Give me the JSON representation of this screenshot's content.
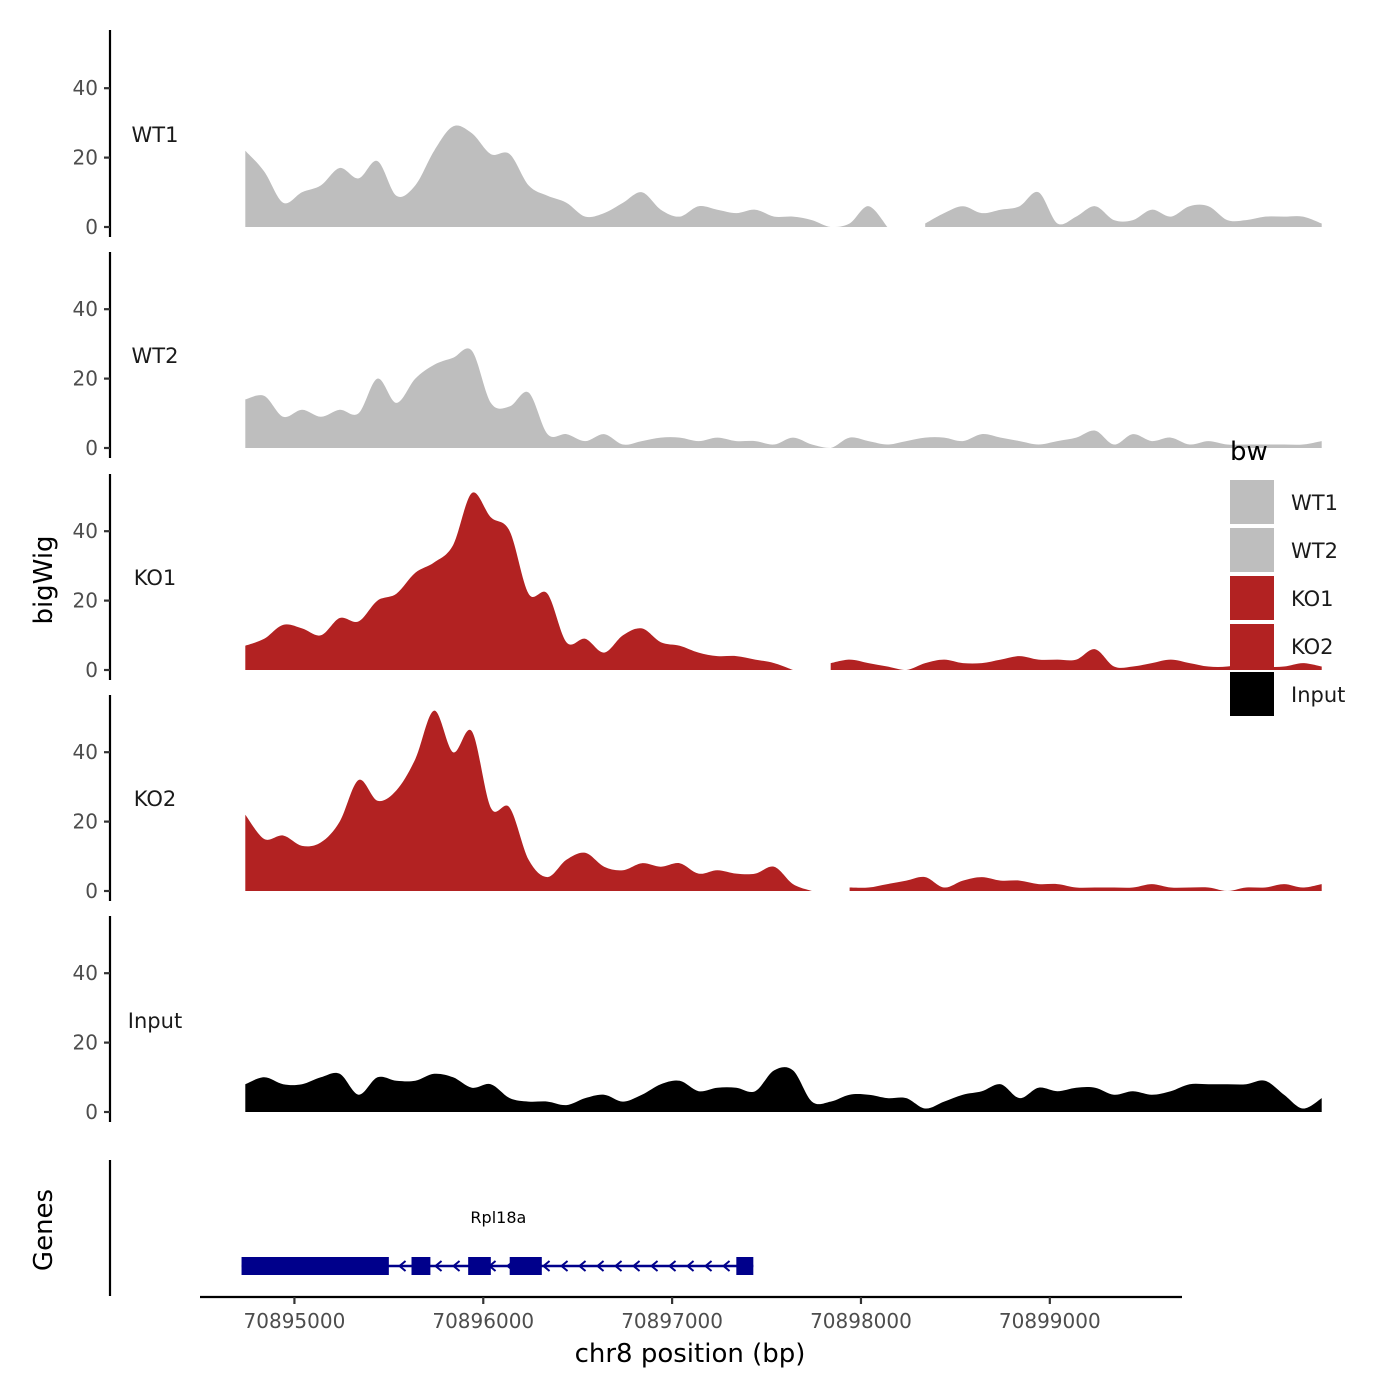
{
  "chart_data": {
    "type": "area",
    "title": "",
    "ylabel": "bigWig",
    "genes_label": "Genes",
    "xlabel": "chr8 position (bp)",
    "xlim": [
      70894500,
      70899700
    ],
    "ylim": [
      0,
      55
    ],
    "yticks": [
      0,
      20,
      40
    ],
    "xticks": [
      70895000,
      70896000,
      70897000,
      70898000,
      70899000
    ],
    "xtick_labels": [
      "70895000",
      "70896000",
      "70897000",
      "70898000",
      "70899000"
    ],
    "legend": {
      "title": "bw",
      "placement": "right",
      "entries": [
        {
          "label": "WT1",
          "color": "#bebebe"
        },
        {
          "label": "WT2",
          "color": "#bebebe"
        },
        {
          "label": "KO1",
          "color": "#b22222"
        },
        {
          "label": "KO2",
          "color": "#b22222"
        },
        {
          "label": "Input",
          "color": "#000000"
        }
      ]
    },
    "x_start": 70894740,
    "step_bp": 100,
    "series": [
      {
        "name": "WT1",
        "color": "#bebebe",
        "values": [
          22,
          16,
          7,
          10,
          12,
          17,
          14,
          19,
          9,
          12,
          22,
          29,
          27,
          21,
          21,
          12,
          9,
          7,
          3,
          4,
          7,
          10,
          5,
          3,
          6,
          5,
          4,
          5,
          3,
          3,
          2,
          0,
          1,
          6,
          0,
          null,
          1,
          4,
          6,
          4,
          5,
          6,
          10,
          1,
          3,
          6,
          2,
          2,
          5,
          3,
          6,
          6,
          2,
          2,
          3,
          3,
          3,
          1
        ]
      },
      {
        "name": "WT2",
        "color": "#bebebe",
        "values": [
          14,
          15,
          9,
          11,
          9,
          11,
          10,
          20,
          13,
          20,
          24,
          26,
          28,
          13,
          12,
          16,
          4,
          4,
          2,
          4,
          1,
          2,
          3,
          3,
          2,
          3,
          2,
          2,
          1,
          3,
          1,
          0,
          3,
          2,
          1,
          2,
          3,
          3,
          2,
          4,
          3,
          2,
          1,
          2,
          3,
          5,
          1,
          4,
          2,
          3,
          1,
          2,
          1,
          1,
          1,
          1,
          1,
          2
        ]
      },
      {
        "name": "KO1",
        "color": "#b22222",
        "values": [
          7,
          9,
          13,
          12,
          10,
          15,
          14,
          20,
          22,
          28,
          31,
          36,
          51,
          44,
          40,
          22,
          22,
          8,
          9,
          5,
          10,
          12,
          8,
          7,
          5,
          4,
          4,
          3,
          2,
          0,
          null,
          2,
          3,
          2,
          1,
          0,
          2,
          3,
          2,
          2,
          3,
          4,
          3,
          3,
          3,
          6,
          1,
          1,
          2,
          3,
          2,
          1,
          1,
          2,
          1,
          1,
          2,
          1
        ]
      },
      {
        "name": "KO2",
        "color": "#b22222",
        "values": [
          22,
          15,
          16,
          13,
          14,
          20,
          32,
          26,
          29,
          38,
          52,
          40,
          46,
          24,
          24,
          9,
          4,
          9,
          11,
          7,
          6,
          8,
          7,
          8,
          5,
          6,
          5,
          5,
          7,
          2,
          0,
          null,
          1,
          1,
          2,
          3,
          4,
          1,
          3,
          4,
          3,
          3,
          2,
          2,
          1,
          1,
          1,
          1,
          2,
          1,
          1,
          1,
          0,
          1,
          1,
          2,
          1,
          2
        ]
      },
      {
        "name": "Input",
        "color": "#000000",
        "values": [
          8,
          10,
          8,
          8,
          10,
          11,
          5,
          10,
          9,
          9,
          11,
          10,
          7,
          8,
          4,
          3,
          3,
          2,
          4,
          5,
          3,
          5,
          8,
          9,
          6,
          7,
          7,
          6,
          12,
          12,
          3,
          3,
          5,
          5,
          4,
          4,
          1,
          3,
          5,
          6,
          8,
          4,
          7,
          6,
          7,
          7,
          5,
          6,
          5,
          6,
          8,
          8,
          8,
          8,
          9,
          5,
          1,
          4
        ]
      }
    ],
    "gene": {
      "name": "Rpl18a",
      "strand": "-",
      "start": 70894720,
      "end": 70897430,
      "exons": [
        [
          70894720,
          70895500
        ],
        [
          70895620,
          70895720
        ],
        [
          70895920,
          70896040
        ],
        [
          70896140,
          70896310
        ],
        [
          70897340,
          70897430
        ]
      ]
    }
  }
}
